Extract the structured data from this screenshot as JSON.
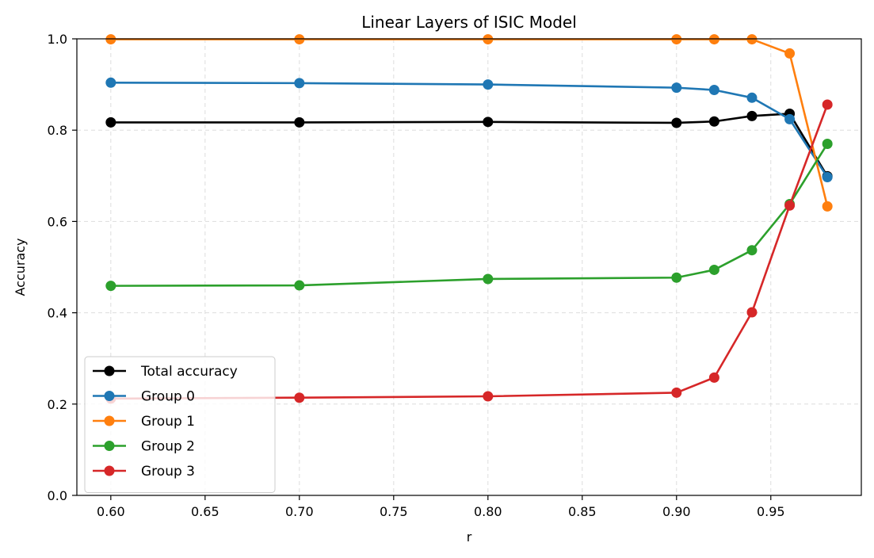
{
  "chart_data": {
    "type": "line",
    "title": "Linear Layers of ISIC Model",
    "xlabel": "r",
    "ylabel": "Accuracy",
    "xlim": [
      0.582,
      0.998
    ],
    "ylim": [
      0.0,
      1.0
    ],
    "xticks": [
      "0.60",
      "0.65",
      "0.70",
      "0.75",
      "0.80",
      "0.85",
      "0.90",
      "0.95"
    ],
    "yticks": [
      "0.0",
      "0.2",
      "0.4",
      "0.6",
      "0.8",
      "1.0"
    ],
    "grid": true,
    "legend_position": "lower-left",
    "x": [
      0.6,
      0.7,
      0.8,
      0.9,
      0.92,
      0.94,
      0.96,
      0.98
    ],
    "series": [
      {
        "name": "Total accuracy",
        "color": "#000000",
        "values": [
          0.817,
          0.817,
          0.818,
          0.816,
          0.819,
          0.831,
          0.836,
          0.699
        ]
      },
      {
        "name": "Group 0",
        "color": "#1f77b4",
        "values": [
          0.904,
          0.903,
          0.9,
          0.893,
          0.888,
          0.871,
          0.824,
          0.697
        ]
      },
      {
        "name": "Group 1",
        "color": "#ff7f0e",
        "values": [
          0.999,
          0.999,
          0.999,
          0.999,
          0.999,
          0.999,
          0.968,
          0.633
        ]
      },
      {
        "name": "Group 2",
        "color": "#2ca02c",
        "values": [
          0.459,
          0.46,
          0.474,
          0.477,
          0.494,
          0.537,
          0.638,
          0.77
        ]
      },
      {
        "name": "Group 3",
        "color": "#d62728",
        "values": [
          0.212,
          0.214,
          0.217,
          0.225,
          0.258,
          0.401,
          0.635,
          0.856
        ]
      }
    ]
  }
}
